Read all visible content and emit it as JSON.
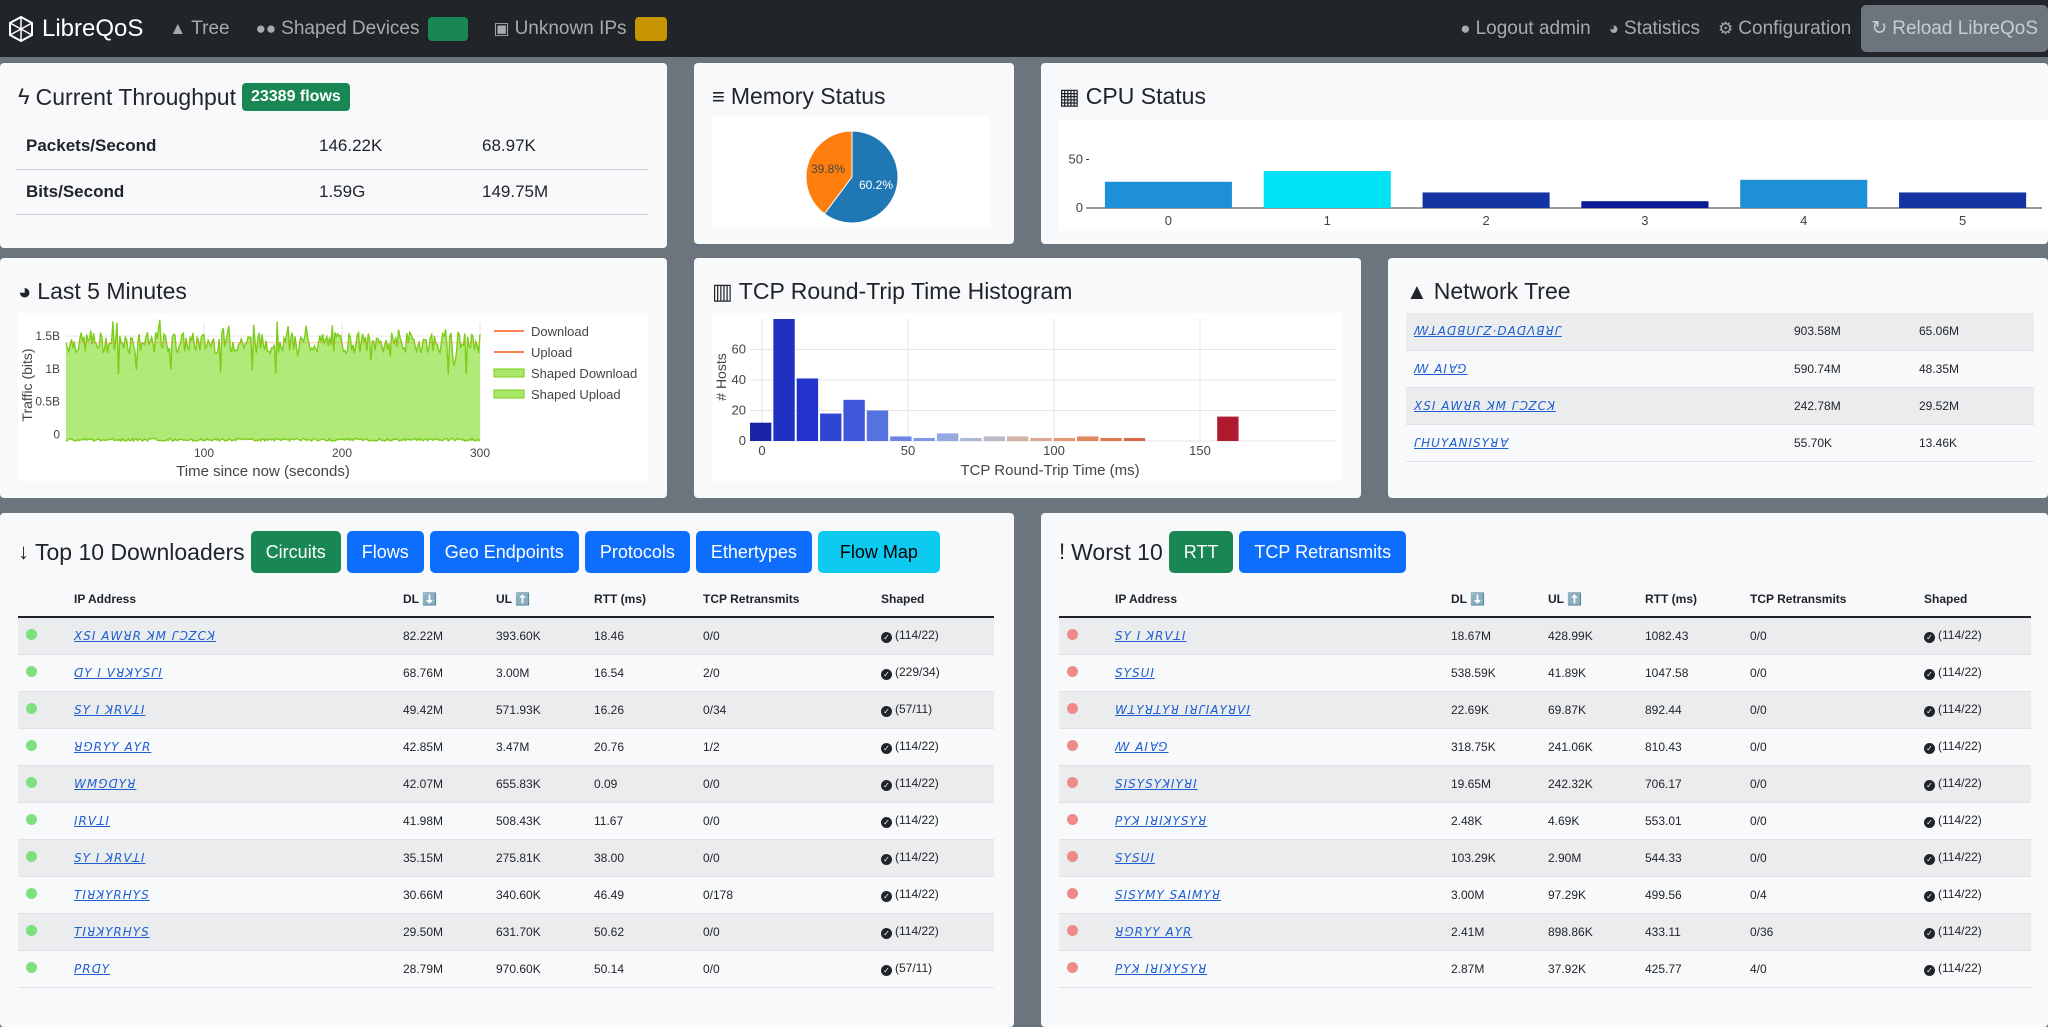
{
  "navbar": {
    "brand": "LibreQoS",
    "tree": "Tree",
    "shaped_devices": "Shaped Devices",
    "unknown_ips": "Unknown IPs",
    "shaped_badge_color": "#198754",
    "unknown_badge_color": "#c69500",
    "logout": "Logout admin",
    "statistics": "Statistics",
    "configuration": "Configuration",
    "reload": "Reload LibreQoS"
  },
  "throughput": {
    "title": "Current Throughput",
    "flows_badge": "23389 flows",
    "rows": [
      {
        "label": "Packets/Second",
        "down": "146.22K",
        "up": "68.97K"
      },
      {
        "label": "Bits/Second",
        "down": "1.59G",
        "up": "149.75M"
      }
    ]
  },
  "memory": {
    "title": "Memory Status",
    "chart_data": {
      "type": "pie",
      "labels": [
        "39.8%",
        "60.2%"
      ],
      "values": [
        39.8,
        60.2
      ],
      "colors": [
        "#ff7f0e",
        "#1f77b4"
      ]
    }
  },
  "cpu": {
    "title": "CPU Status",
    "chart_data": {
      "type": "bar",
      "categories": [
        "0",
        "1",
        "2",
        "3",
        "4",
        "5"
      ],
      "values": [
        27,
        38,
        16,
        7,
        29,
        16
      ],
      "colors": [
        "#1e90d8",
        "#00e1f4",
        "#1434a4",
        "#0a1a96",
        "#1e90d8",
        "#1434a4"
      ],
      "ylim": [
        0,
        70
      ],
      "yticks": [
        "0",
        "50"
      ]
    }
  },
  "last5": {
    "title": "Last 5 Minutes",
    "chart_data": {
      "type": "area",
      "xlabel": "Time since now (seconds)",
      "ylabel": "Traffic (bits)",
      "xticks": [
        "100",
        "200",
        "300"
      ],
      "yticks": [
        "0",
        "0.5B",
        "1B",
        "1.5B"
      ],
      "xlim": [
        0,
        300
      ],
      "ylim": [
        -0.1,
        1.7
      ],
      "series": [
        {
          "name": "Download",
          "color": "#ff7f50"
        },
        {
          "name": "Upload",
          "color": "#ff7f50"
        },
        {
          "name": "Shaped Download",
          "color": "#7ccd1a"
        },
        {
          "name": "Shaped Upload",
          "color": "#7ccd1a"
        }
      ],
      "download_level": 1.4,
      "upload_level": -0.08
    }
  },
  "rtt": {
    "title": "TCP Round-Trip Time Histogram",
    "chart_data": {
      "type": "bar",
      "xlabel": "TCP Round-Trip Time (ms)",
      "ylabel": "# Hosts",
      "xticks": [
        "0",
        "50",
        "100",
        "150"
      ],
      "yticks": [
        "0",
        "20",
        "40",
        "60"
      ],
      "ylim": [
        0,
        80
      ],
      "bin_width": 8,
      "values": [
        12,
        80,
        41,
        18,
        27,
        20,
        3,
        2,
        5,
        2,
        3,
        3,
        2,
        2,
        3,
        2,
        2,
        0,
        0,
        0,
        16
      ],
      "colors": [
        "#1a23a8",
        "#2030c0",
        "#2233cc",
        "#2f46d2",
        "#3f58da",
        "#5472e0",
        "#6b86e6",
        "#8099e4",
        "#96a9e2",
        "#aab8d8",
        "#bdb8c8",
        "#cfb2a8",
        "#dca890",
        "#e09a76",
        "#e0895e",
        "#dc7850",
        "#d86848",
        "#cc5040",
        "#c23838",
        "#b22a30",
        "#b01a2e"
      ]
    }
  },
  "network_tree": {
    "title": "Network Tree",
    "rows": [
      {
        "name": "ꟿꓕꓮꓷꓭꓴꓩꓜ·ꓓꓮꓷꓥꓭꓤꓩ",
        "down": "903.58M",
        "up": "65.06M"
      },
      {
        "name": "ꟿ ꓮꓲꓯꓨ",
        "down": "590.74M",
        "up": "48.35M"
      },
      {
        "name": "ꓫꓢꓲ ꓮꓪꓤꓣ ꓘꓟ ꓩꓛꓜꓚꓘ",
        "down": "242.78M",
        "up": "29.52M"
      },
      {
        "name": "ꓩꓧꓴꓬꓮꓠꓲꓢꓬꓤꓯ",
        "down": "55.70K",
        "up": "13.46K"
      }
    ]
  },
  "top10": {
    "title": "Top 10 Downloaders",
    "buttons": [
      "Circuits",
      "Flows",
      "Geo Endpoints",
      "Protocols",
      "Ethertypes",
      "Flow Map"
    ],
    "headers": [
      "IP Address",
      "DL ⬇️",
      "UL ⬆️",
      "RTT (ms)",
      "TCP Retransmits",
      "Shaped"
    ],
    "rows": [
      {
        "ip": "ꓫꓢꓲ ꓮꓪꓤꓣ ꓘꓟ ꓩꓛꓜꓚꓘ",
        "dl": "82.22M",
        "ul": "393.60K",
        "rtt": "18.46",
        "retx": "0/0",
        "shaped": "(114/22)"
      },
      {
        "ip": "ꓷꓬ ꓲ ꓦꓤꓘꓬꓢꓩꓲ",
        "dl": "68.76M",
        "ul": "3.00M",
        "rtt": "16.54",
        "retx": "2/0",
        "shaped": "(229/34)"
      },
      {
        "ip": "ꓢꓬ ꓲ ꓘꓣꓦꓕꓲ",
        "dl": "49.42M",
        "ul": "571.93K",
        "rtt": "16.26",
        "retx": "0/34",
        "shaped": "(57/11)"
      },
      {
        "ip": "ꓤꓨꓣꓬꓬ ꓮꓬꓣ",
        "dl": "42.85M",
        "ul": "3.47M",
        "rtt": "20.76",
        "retx": "1/2",
        "shaped": "(114/22)"
      },
      {
        "ip": "ꓪꓟꓨꓷꓬꓤ",
        "dl": "42.07M",
        "ul": "655.83K",
        "rtt": "0.09",
        "retx": "0/0",
        "shaped": "(114/22)"
      },
      {
        "ip": "ꓲꓣꓦꓕꓲ",
        "dl": "41.98M",
        "ul": "508.43K",
        "rtt": "11.67",
        "retx": "0/0",
        "shaped": "(114/22)"
      },
      {
        "ip": "ꓢꓬ ꓲ ꓘꓣꓦꓕꓲ",
        "dl": "35.15M",
        "ul": "275.81K",
        "rtt": "38.00",
        "retx": "0/0",
        "shaped": "(114/22)"
      },
      {
        "ip": "ꓔꓲꓤꓘꓬꓣꓧꓬꓢ",
        "dl": "30.66M",
        "ul": "340.60K",
        "rtt": "46.49",
        "retx": "0/178",
        "shaped": "(114/22)"
      },
      {
        "ip": "ꓔꓲꓤꓘꓬꓣꓧꓬꓢ",
        "dl": "29.50M",
        "ul": "631.70K",
        "rtt": "50.62",
        "retx": "0/0",
        "shaped": "(114/22)"
      },
      {
        "ip": "ꓑꓣꓷꓬ",
        "dl": "28.79M",
        "ul": "970.60K",
        "rtt": "50.14",
        "retx": "0/0",
        "shaped": "(57/11)"
      }
    ]
  },
  "worst10": {
    "title": "Worst 10",
    "buttons": [
      "RTT",
      "TCP Retransmits"
    ],
    "headers": [
      "IP Address",
      "DL ⬇️",
      "UL ⬆️",
      "RTT (ms)",
      "TCP Retransmits",
      "Shaped"
    ],
    "rows": [
      {
        "ip": "ꓢꓬ ꓲ ꓘꓣꓦꓕꓲ",
        "dl": "18.67M",
        "ul": "428.99K",
        "rtt": "1082.43",
        "retx": "0/0",
        "shaped": "(114/22)"
      },
      {
        "ip": "ꓢꓬꓢꓴꓲ",
        "dl": "538.59K",
        "ul": "41.89K",
        "rtt": "1047.58",
        "retx": "0/0",
        "shaped": "(114/22)"
      },
      {
        "ip": "ꓪꓕꓬꓤꓕꓬꓤ ꓲꓤꓩꓲꓮꓬꓤꓦꓲ",
        "dl": "22.69K",
        "ul": "69.87K",
        "rtt": "892.44",
        "retx": "0/0",
        "shaped": "(114/22)"
      },
      {
        "ip": "ꟿ ꓮꓲꓯꓨ",
        "dl": "318.75K",
        "ul": "241.06K",
        "rtt": "810.43",
        "retx": "0/0",
        "shaped": "(114/22)"
      },
      {
        "ip": "ꓢꓲꓢꓬꓢꓬꓘꓲꓬꓤꓲ",
        "dl": "19.65M",
        "ul": "242.32K",
        "rtt": "706.17",
        "retx": "0/0",
        "shaped": "(114/22)"
      },
      {
        "ip": "ꓑꓬꓘ ꓲꓤꓲꓘꓬꓢꓬꓤ",
        "dl": "2.48K",
        "ul": "4.69K",
        "rtt": "553.01",
        "retx": "0/0",
        "shaped": "(114/22)"
      },
      {
        "ip": "ꓢꓬꓢꓴꓲ",
        "dl": "103.29K",
        "ul": "2.90M",
        "rtt": "544.33",
        "retx": "0/0",
        "shaped": "(114/22)"
      },
      {
        "ip": "ꓢꓲꓢꓬꓟꓬ ꓢꓮꓲꓟꓬꓤ",
        "dl": "3.00M",
        "ul": "97.29K",
        "rtt": "499.56",
        "retx": "0/4",
        "shaped": "(114/22)"
      },
      {
        "ip": "ꓤꓨꓣꓬꓬ ꓮꓬꓣ",
        "dl": "2.41M",
        "ul": "898.86K",
        "rtt": "433.11",
        "retx": "0/36",
        "shaped": "(114/22)"
      },
      {
        "ip": "ꓑꓬꓘ ꓲꓤꓲꓘꓬꓢꓬꓤ",
        "dl": "2.87M",
        "ul": "37.92K",
        "rtt": "425.77",
        "retx": "4/0",
        "shaped": "(114/22)"
      }
    ]
  }
}
